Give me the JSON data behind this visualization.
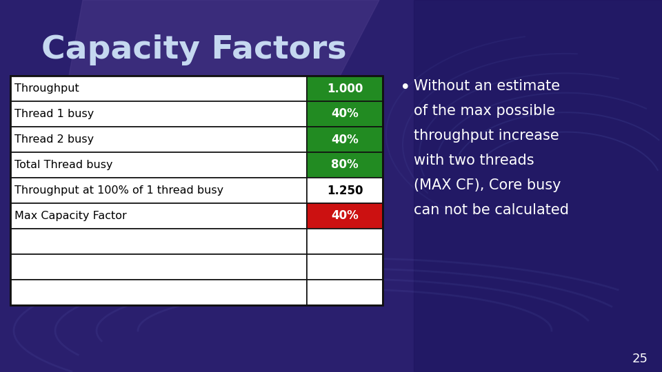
{
  "title": "Capacity Factors",
  "title_color": "#c5d8f0",
  "title_fontsize": 34,
  "table_rows": [
    {
      "label": "Throughput",
      "value": "1.000",
      "value_bg": "#228B22",
      "value_color": "#ffffff",
      "label_bg": "#ffffff"
    },
    {
      "label": "Thread 1 busy",
      "value": "40%",
      "value_bg": "#228B22",
      "value_color": "#ffffff",
      "label_bg": "#ffffff"
    },
    {
      "label": "Thread 2 busy",
      "value": "40%",
      "value_bg": "#228B22",
      "value_color": "#ffffff",
      "label_bg": "#ffffff"
    },
    {
      "label": "Total Thread busy",
      "value": "80%",
      "value_bg": "#228B22",
      "value_color": "#ffffff",
      "label_bg": "#ffffff"
    },
    {
      "label": "Throughput at 100% of 1 thread busy",
      "value": "1.250",
      "value_bg": "#ffffff",
      "value_color": "#000000",
      "label_bg": "#ffffff"
    },
    {
      "label": "Max Capacity Factor",
      "value": "40%",
      "value_bg": "#cc1111",
      "value_color": "#ffffff",
      "label_bg": "#ffffff"
    },
    {
      "label": "",
      "value": "",
      "value_bg": "#ffffff",
      "value_color": "#000000",
      "label_bg": "#ffffff"
    },
    {
      "label": "",
      "value": "",
      "value_bg": "#ffffff",
      "value_color": "#000000",
      "label_bg": "#ffffff"
    },
    {
      "label": "",
      "value": "",
      "value_bg": "#ffffff",
      "value_color": "#000000",
      "label_bg": "#ffffff"
    }
  ],
  "bullet_text_lines": [
    "Without an estimate",
    "of the max possible",
    "throughput increase",
    "with two threads",
    "(MAX CF), Core busy",
    "can not be calculated"
  ],
  "bullet_color": "#ffffff",
  "bullet_fontsize": 15,
  "page_number": "25",
  "page_number_color": "#ffffff",
  "page_number_fontsize": 13,
  "bg_base": "#2a1f6e",
  "bg_right": "#1a0f5a",
  "swirl_color": "#6070cc"
}
